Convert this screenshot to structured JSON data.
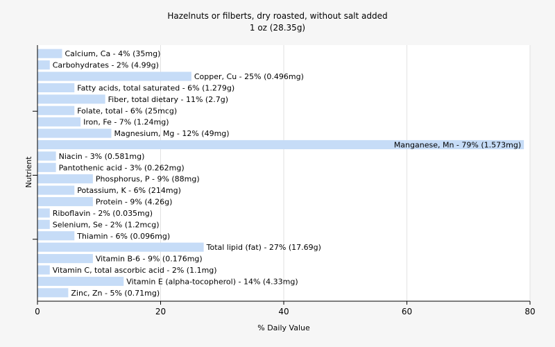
{
  "chart_data": {
    "type": "bar",
    "orientation": "horizontal",
    "title": "Hazelnuts or filberts, dry roasted, without salt added",
    "subtitle": "1 oz (28.35g)",
    "xlabel": "% Daily Value",
    "ylabel": "Nutrient",
    "xlim": [
      0,
      80
    ],
    "xticks": [
      "0",
      "20",
      "40",
      "60",
      "80"
    ],
    "grid": true,
    "bar_color": "#c6dcf7",
    "categories": [
      "Calcium, Ca",
      "Carbohydrates",
      "Copper, Cu",
      "Fatty acids, total saturated",
      "Fiber, total dietary",
      "Folate, total",
      "Iron, Fe",
      "Magnesium, Mg",
      "Manganese, Mn",
      "Niacin",
      "Pantothenic acid",
      "Phosphorus, P",
      "Potassium, K",
      "Protein",
      "Riboflavin",
      "Selenium, Se",
      "Thiamin",
      "Total lipid (fat)",
      "Vitamin B-6",
      "Vitamin C, total ascorbic acid",
      "Vitamin E (alpha-tocopherol)",
      "Zinc, Zn"
    ],
    "values": [
      4,
      2,
      25,
      6,
      11,
      6,
      7,
      12,
      79,
      3,
      3,
      9,
      6,
      9,
      2,
      2,
      6,
      27,
      9,
      2,
      14,
      5
    ],
    "labels": [
      "Calcium, Ca - 4% (35mg)",
      "Carbohydrates - 2% (4.99g)",
      "Copper, Cu - 25% (0.496mg)",
      "Fatty acids, total saturated - 6% (1.279g)",
      "Fiber, total dietary - 11% (2.7g)",
      "Folate, total - 6% (25mcg)",
      "Iron, Fe - 7% (1.24mg)",
      "Magnesium, Mg - 12% (49mg)",
      "Manganese, Mn - 79% (1.573mg)",
      "Niacin - 3% (0.581mg)",
      "Pantothenic acid - 3% (0.262mg)",
      "Phosphorus, P - 9% (88mg)",
      "Potassium, K - 6% (214mg)",
      "Protein - 9% (4.26g)",
      "Riboflavin - 2% (0.035mg)",
      "Selenium, Se - 2% (1.2mcg)",
      "Thiamin - 6% (0.096mg)",
      "Total lipid (fat) - 27% (17.69g)",
      "Vitamin B-6 - 9% (0.176mg)",
      "Vitamin C, total ascorbic acid - 2% (1.1mg)",
      "Vitamin E (alpha-tocopherol) - 14% (4.33mg)",
      "Zinc, Zn - 5% (0.71mg)"
    ]
  }
}
